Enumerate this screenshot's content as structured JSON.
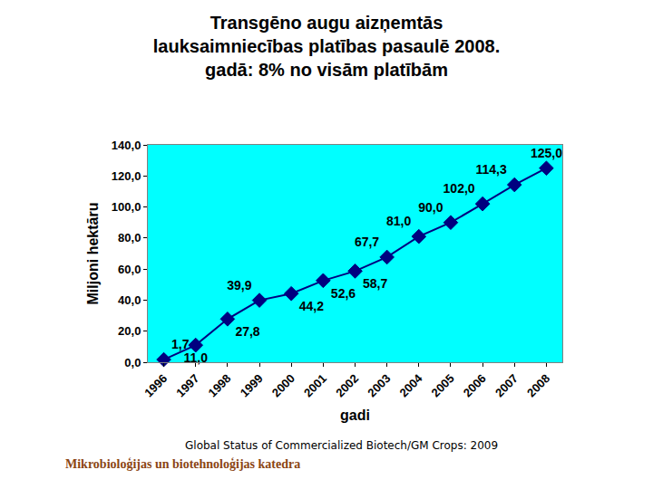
{
  "chart_data": {
    "type": "line",
    "title": "Transgēno augu aizņemtās lauksaimniecības platības pasaulē 2008. gadā: 8% no visām platībām",
    "x_label": "gadi",
    "y_label": "Miljoni hektāru",
    "categories": [
      "1996",
      "1997",
      "1998",
      "1999",
      "2000",
      "2001",
      "2002",
      "2003",
      "2004",
      "2005",
      "2006",
      "2007",
      "2008"
    ],
    "values": [
      1.7,
      11.0,
      27.8,
      39.9,
      44.2,
      52.6,
      58.7,
      67.7,
      81.0,
      90.0,
      102.0,
      114.3,
      125.0
    ],
    "value_labels": [
      "1,7",
      "11,0",
      "27,8",
      "39,9",
      "44,2",
      "52,6",
      "58,7",
      "67,7",
      "81,0",
      "90,0",
      "102,0",
      "114,3",
      "125,0"
    ],
    "data_labels": true,
    "color": "#000080",
    "marker": "diamond",
    "line_style": "solid",
    "ylim": [
      0,
      140
    ],
    "yticks": [
      {
        "value": 0,
        "label": "0,0"
      },
      {
        "value": 20,
        "label": "20,0"
      },
      {
        "value": 40,
        "label": "40,0"
      },
      {
        "value": 60,
        "label": "60,0"
      },
      {
        "value": 80,
        "label": "80,0"
      },
      {
        "value": 100,
        "label": "100,0"
      },
      {
        "value": 120,
        "label": "120,0"
      },
      {
        "value": 140,
        "label": "140,0"
      }
    ],
    "grid": false,
    "annotations": [
      "Global Status of Commercialized Biotech/GM Crops: 2009",
      "Mikrobioloģijas un biotehnoloģijas katedra"
    ]
  }
}
